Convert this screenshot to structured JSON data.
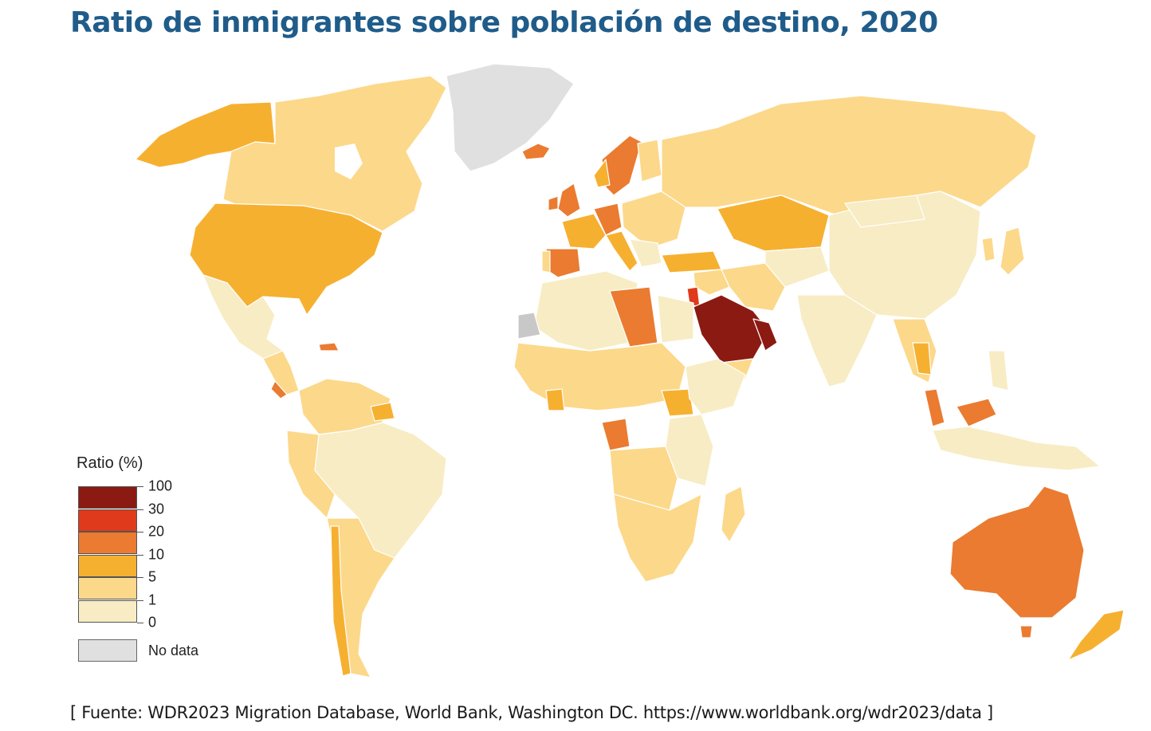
{
  "title": "Ratio de inmigrantes sobre población de destino, 2020",
  "legend": {
    "title": "Ratio (%)",
    "bins": [
      {
        "from": 30,
        "to": 100,
        "color": "#8b1a12"
      },
      {
        "from": 20,
        "to": 30,
        "color": "#e03a1c"
      },
      {
        "from": 10,
        "to": 20,
        "color": "#ea7b30"
      },
      {
        "from": 5,
        "to": 10,
        "color": "#f6b030"
      },
      {
        "from": 1,
        "to": 5,
        "color": "#fcd88a"
      },
      {
        "from": 0,
        "to": 1,
        "color": "#f8ecc4"
      }
    ],
    "ticks": [
      "100",
      "30",
      "20",
      "10",
      "5",
      "1",
      "0"
    ],
    "no_data_label": "No data",
    "no_data_color": "#e0e0e0"
  },
  "source": "[ Fuente: WDR2023 Migration Database, World Bank, Washington DC. https://www.worldbank.org/wdr2023/data ]"
}
